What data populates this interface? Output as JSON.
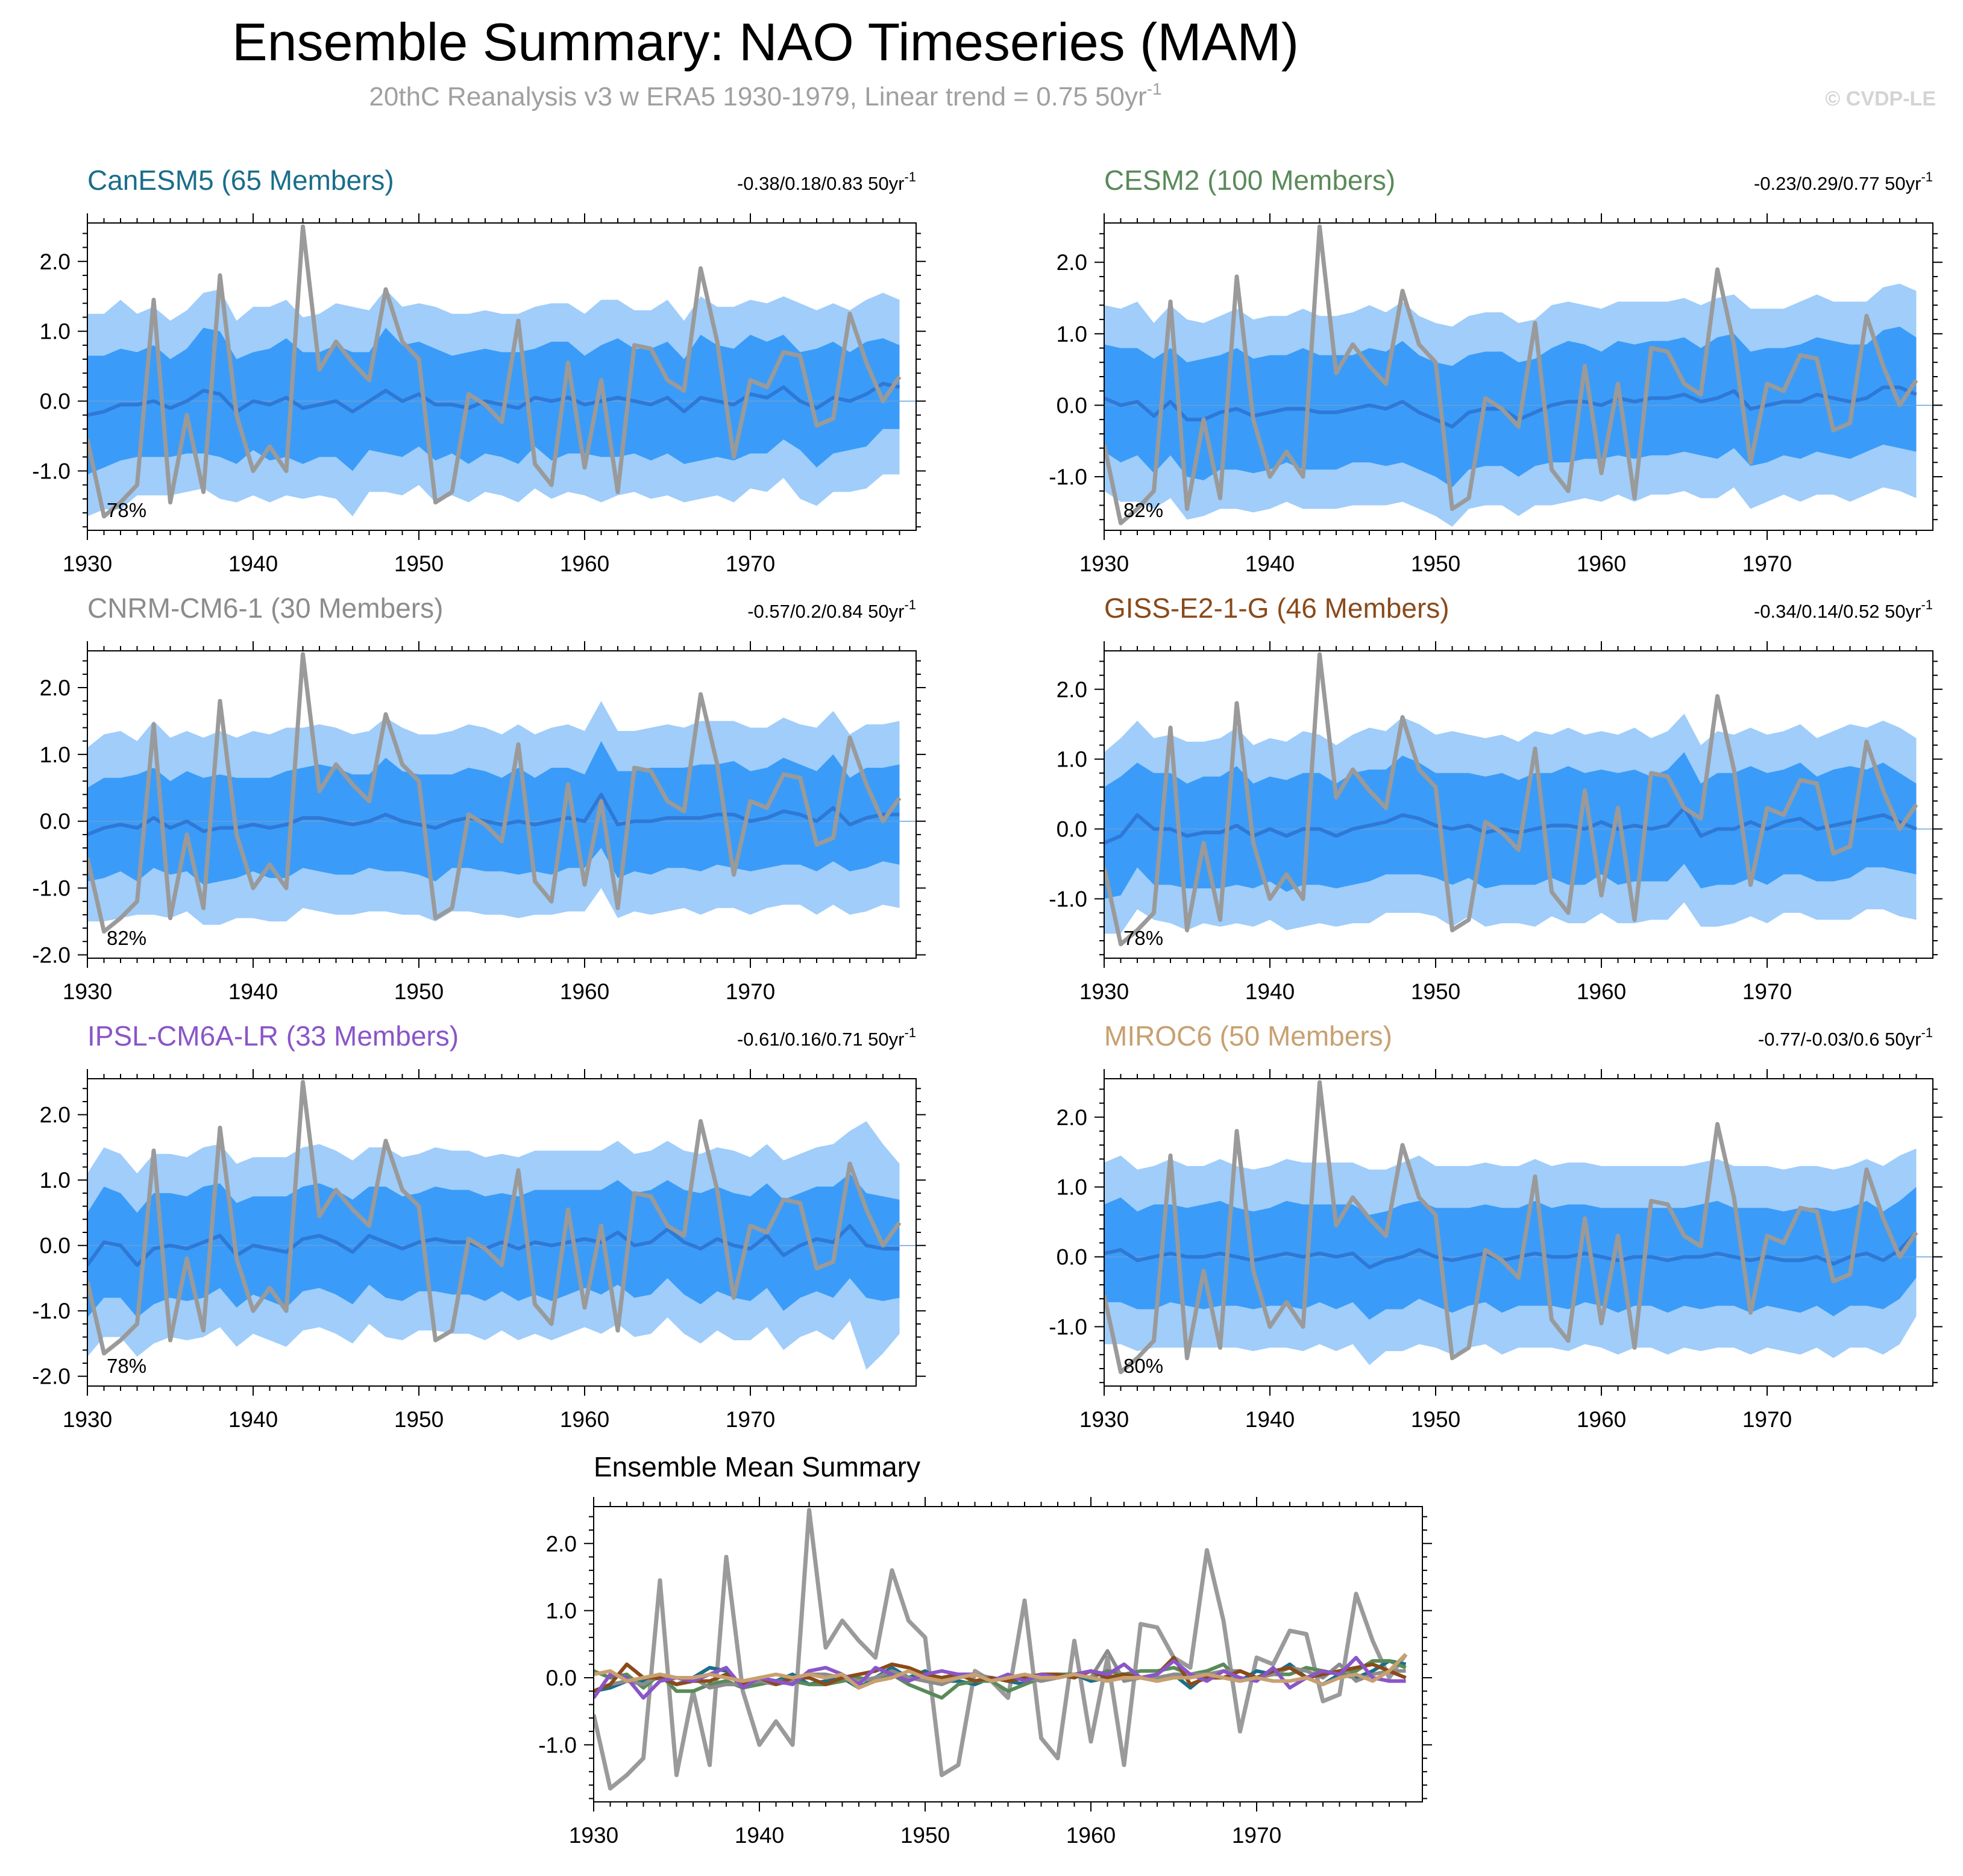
{
  "header": {
    "title": "Ensemble Summary: NAO Timeseries (MAM)",
    "subtitle_main": "20thC Reanalysis v3 w ERA5 1930-1979, Linear trend = 0.75 50yr",
    "subtitle_sup": "-1",
    "credit": "© CVDP-LE"
  },
  "colors": {
    "band_outer": "#a0cdfa",
    "band_inner": "#3a9cf8",
    "ensemble_mean": "#2f78d6",
    "observed": "#9a9a9a"
  },
  "unit": "50yr",
  "unit_sup": "-1",
  "chart_data": {
    "type": "line",
    "x": [
      1930,
      1931,
      1932,
      1933,
      1934,
      1935,
      1936,
      1937,
      1938,
      1939,
      1940,
      1941,
      1942,
      1943,
      1944,
      1945,
      1946,
      1947,
      1948,
      1949,
      1950,
      1951,
      1952,
      1953,
      1954,
      1955,
      1956,
      1957,
      1958,
      1959,
      1960,
      1961,
      1962,
      1963,
      1964,
      1965,
      1966,
      1967,
      1968,
      1969,
      1970,
      1971,
      1972,
      1973,
      1974,
      1975,
      1976,
      1977,
      1978,
      1979
    ],
    "x_ticks": [
      "1930",
      "1940",
      "1950",
      "1960",
      "1970"
    ],
    "observed": {
      "name": "20thC Reanalysis v3 w ERA5",
      "values": [
        -0.55,
        -1.65,
        -1.45,
        -1.2,
        1.45,
        -1.45,
        -0.2,
        -1.3,
        1.8,
        -0.2,
        -1.0,
        -0.65,
        -1.0,
        2.5,
        0.45,
        0.85,
        0.55,
        0.3,
        1.6,
        0.85,
        0.6,
        -1.45,
        -1.3,
        0.1,
        -0.05,
        -0.3,
        1.15,
        -0.9,
        -1.2,
        0.55,
        -0.95,
        0.3,
        -1.3,
        0.8,
        0.75,
        0.3,
        0.15,
        1.9,
        0.85,
        -0.8,
        0.3,
        0.2,
        0.7,
        0.65,
        -0.35,
        -0.25,
        1.25,
        0.55,
        0.0,
        0.35
      ]
    },
    "panels": [
      {
        "title": "CanESM5 (65 Members)",
        "title_color": "#1a6e8a",
        "trend": "-0.38/0.18/0.83",
        "percent": "78%",
        "y_ticks": [
          "2.0",
          "1.0",
          "0.0",
          "-1.0"
        ],
        "ylim": [
          -1.85,
          2.55
        ],
        "mean": [
          -0.2,
          -0.15,
          -0.05,
          -0.05,
          0.0,
          -0.1,
          0.0,
          0.15,
          0.1,
          -0.15,
          0.0,
          -0.05,
          0.05,
          -0.1,
          -0.05,
          0.0,
          -0.15,
          0.0,
          0.15,
          0.0,
          0.1,
          -0.05,
          -0.05,
          -0.1,
          0.0,
          -0.05,
          -0.1,
          0.05,
          0.0,
          0.05,
          -0.05,
          0.0,
          0.05,
          0.0,
          -0.05,
          0.05,
          -0.15,
          0.05,
          0.0,
          -0.05,
          0.1,
          0.05,
          0.2,
          0.0,
          -0.1,
          0.05,
          0.0,
          0.1,
          0.25,
          0.2
        ],
        "inner_half": [
          0.85,
          0.8,
          0.8,
          0.75,
          0.8,
          0.7,
          0.75,
          0.9,
          0.9,
          0.75,
          0.7,
          0.8,
          0.85,
          0.8,
          0.75,
          0.8,
          0.85,
          0.7,
          0.9,
          0.8,
          0.75,
          0.8,
          0.7,
          0.8,
          0.75,
          0.75,
          0.8,
          0.7,
          0.85,
          0.8,
          0.7,
          0.8,
          0.85,
          0.75,
          0.8,
          0.8,
          0.75,
          0.9,
          0.8,
          0.8,
          0.85,
          0.8,
          0.75,
          0.7,
          0.85,
          0.8,
          0.7,
          0.75,
          0.65,
          0.6
        ],
        "outer_half": [
          1.45,
          1.4,
          1.5,
          1.3,
          1.35,
          1.25,
          1.3,
          1.4,
          1.5,
          1.3,
          1.35,
          1.4,
          1.4,
          1.3,
          1.3,
          1.4,
          1.5,
          1.3,
          1.45,
          1.35,
          1.3,
          1.4,
          1.3,
          1.35,
          1.3,
          1.3,
          1.35,
          1.3,
          1.4,
          1.35,
          1.3,
          1.45,
          1.4,
          1.3,
          1.35,
          1.4,
          1.3,
          1.45,
          1.35,
          1.4,
          1.35,
          1.35,
          1.3,
          1.4,
          1.4,
          1.35,
          1.3,
          1.35,
          1.3,
          1.25
        ]
      },
      {
        "title": "CESM2 (100 Members)",
        "title_color": "#5a8a5a",
        "trend": "-0.23/0.29/0.77",
        "percent": "82%",
        "y_ticks": [
          "2.0",
          "1.0",
          "0.0",
          "-1.0"
        ],
        "ylim": [
          -1.75,
          2.55
        ],
        "mean": [
          0.1,
          0.0,
          0.05,
          -0.15,
          0.05,
          -0.2,
          -0.2,
          -0.1,
          -0.05,
          -0.15,
          -0.1,
          -0.05,
          -0.05,
          -0.1,
          -0.1,
          -0.05,
          0.0,
          -0.05,
          0.05,
          -0.1,
          -0.2,
          -0.3,
          -0.1,
          -0.05,
          -0.05,
          -0.2,
          -0.1,
          0.0,
          0.05,
          0.05,
          0.0,
          0.1,
          0.05,
          0.1,
          0.1,
          0.15,
          0.05,
          0.1,
          0.2,
          -0.05,
          0.0,
          0.05,
          0.05,
          0.15,
          0.1,
          0.05,
          0.1,
          0.25,
          0.25,
          0.15
        ],
        "inner_half": [
          0.75,
          0.8,
          0.75,
          0.8,
          0.75,
          0.8,
          0.85,
          0.8,
          0.85,
          0.8,
          0.8,
          0.75,
          0.85,
          0.8,
          0.8,
          0.75,
          0.8,
          0.8,
          0.85,
          0.8,
          0.8,
          0.85,
          0.8,
          0.8,
          0.8,
          0.8,
          0.75,
          0.8,
          0.85,
          0.8,
          0.75,
          0.8,
          0.8,
          0.8,
          0.8,
          0.8,
          0.75,
          0.85,
          0.8,
          0.8,
          0.8,
          0.75,
          0.8,
          0.8,
          0.8,
          0.8,
          0.75,
          0.8,
          0.85,
          0.8
        ],
        "outer_half": [
          1.3,
          1.35,
          1.4,
          1.3,
          1.35,
          1.4,
          1.35,
          1.35,
          1.4,
          1.35,
          1.35,
          1.3,
          1.4,
          1.35,
          1.35,
          1.35,
          1.4,
          1.35,
          1.4,
          1.35,
          1.35,
          1.4,
          1.35,
          1.35,
          1.35,
          1.35,
          1.3,
          1.4,
          1.4,
          1.35,
          1.35,
          1.35,
          1.4,
          1.35,
          1.35,
          1.35,
          1.35,
          1.4,
          1.35,
          1.4,
          1.35,
          1.3,
          1.4,
          1.4,
          1.35,
          1.4,
          1.35,
          1.4,
          1.45,
          1.45
        ]
      },
      {
        "title": "CNRM-CM6-1 (30 Members)",
        "title_color": "#8c8c8c",
        "trend": "-0.57/0.2/0.84",
        "percent": "82%",
        "y_ticks": [
          "2.0",
          "1.0",
          "0.0",
          "-1.0",
          "-2.0"
        ],
        "ylim": [
          -2.05,
          2.55
        ],
        "mean": [
          -0.2,
          -0.1,
          -0.05,
          -0.1,
          0.05,
          -0.1,
          0.0,
          -0.15,
          -0.1,
          -0.1,
          -0.05,
          -0.1,
          -0.05,
          0.05,
          0.05,
          0.0,
          -0.05,
          0.0,
          0.1,
          0.0,
          -0.05,
          -0.1,
          0.0,
          0.05,
          0.0,
          -0.05,
          0.0,
          -0.05,
          0.0,
          0.05,
          0.0,
          0.4,
          -0.05,
          0.0,
          0.0,
          0.05,
          0.05,
          0.05,
          0.1,
          0.1,
          0.0,
          0.05,
          0.15,
          0.1,
          0.0,
          0.2,
          -0.05,
          0.05,
          0.1,
          0.1
        ],
        "inner_half": [
          0.7,
          0.75,
          0.7,
          0.8,
          0.75,
          0.7,
          0.75,
          0.8,
          0.8,
          0.75,
          0.7,
          0.75,
          0.8,
          0.75,
          0.8,
          0.8,
          0.75,
          0.7,
          0.85,
          0.75,
          0.75,
          0.8,
          0.7,
          0.75,
          0.75,
          0.7,
          0.8,
          0.7,
          0.8,
          0.75,
          0.7,
          0.8,
          0.8,
          0.75,
          0.8,
          0.75,
          0.75,
          0.8,
          0.75,
          0.8,
          0.75,
          0.75,
          0.8,
          0.75,
          0.75,
          0.8,
          0.7,
          0.75,
          0.7,
          0.75
        ],
        "outer_half": [
          1.3,
          1.4,
          1.4,
          1.3,
          1.45,
          1.35,
          1.35,
          1.4,
          1.45,
          1.35,
          1.4,
          1.4,
          1.45,
          1.35,
          1.4,
          1.4,
          1.35,
          1.35,
          1.45,
          1.4,
          1.35,
          1.4,
          1.35,
          1.4,
          1.4,
          1.35,
          1.45,
          1.35,
          1.4,
          1.4,
          1.35,
          1.4,
          1.4,
          1.35,
          1.4,
          1.4,
          1.35,
          1.45,
          1.4,
          1.4,
          1.4,
          1.35,
          1.4,
          1.35,
          1.4,
          1.45,
          1.35,
          1.4,
          1.35,
          1.4
        ]
      },
      {
        "title": "GISS-E2-1-G (46 Members)",
        "title_color": "#8a4a1a",
        "trend": "-0.34/0.14/0.52",
        "percent": "78%",
        "y_ticks": [
          "2.0",
          "1.0",
          "0.0",
          "-1.0"
        ],
        "ylim": [
          -1.85,
          2.55
        ],
        "mean": [
          -0.2,
          -0.1,
          0.2,
          0.0,
          0.0,
          -0.1,
          -0.05,
          -0.05,
          0.05,
          -0.1,
          0.0,
          -0.1,
          0.0,
          0.0,
          -0.1,
          0.0,
          0.05,
          0.1,
          0.2,
          0.15,
          0.05,
          0.0,
          0.05,
          -0.05,
          0.0,
          -0.05,
          0.0,
          0.05,
          0.05,
          0.0,
          0.1,
          0.0,
          0.05,
          0.0,
          0.05,
          0.3,
          -0.1,
          0.0,
          0.0,
          0.1,
          0.0,
          0.1,
          0.15,
          0.0,
          0.05,
          0.1,
          0.15,
          0.2,
          0.1,
          0.0
        ],
        "inner_half": [
          0.8,
          0.85,
          0.75,
          0.8,
          0.8,
          0.75,
          0.8,
          0.8,
          0.85,
          0.75,
          0.75,
          0.8,
          0.8,
          0.8,
          0.75,
          0.8,
          0.8,
          0.75,
          0.85,
          0.8,
          0.75,
          0.8,
          0.75,
          0.8,
          0.8,
          0.75,
          0.8,
          0.75,
          0.85,
          0.8,
          0.75,
          0.8,
          0.8,
          0.75,
          0.8,
          0.8,
          0.75,
          0.8,
          0.8,
          0.8,
          0.8,
          0.75,
          0.8,
          0.75,
          0.8,
          0.8,
          0.7,
          0.75,
          0.7,
          0.65
        ],
        "outer_half": [
          1.3,
          1.4,
          1.35,
          1.3,
          1.35,
          1.35,
          1.3,
          1.35,
          1.4,
          1.3,
          1.3,
          1.35,
          1.4,
          1.35,
          1.3,
          1.35,
          1.4,
          1.3,
          1.4,
          1.35,
          1.3,
          1.4,
          1.3,
          1.35,
          1.35,
          1.3,
          1.4,
          1.3,
          1.4,
          1.35,
          1.3,
          1.35,
          1.4,
          1.3,
          1.35,
          1.35,
          1.3,
          1.4,
          1.35,
          1.35,
          1.35,
          1.3,
          1.35,
          1.3,
          1.35,
          1.4,
          1.3,
          1.35,
          1.35,
          1.3
        ]
      },
      {
        "title": "IPSL-CM6A-LR (33 Members)",
        "title_color": "#8a55c8",
        "trend": "-0.61/0.16/0.71",
        "percent": "78%",
        "y_ticks": [
          "2.0",
          "1.0",
          "0.0",
          "-1.0",
          "-2.0"
        ],
        "ylim": [
          -2.15,
          2.55
        ],
        "mean": [
          -0.3,
          0.05,
          0.0,
          -0.3,
          -0.05,
          0.0,
          -0.05,
          0.05,
          0.15,
          -0.15,
          0.0,
          -0.05,
          -0.1,
          0.1,
          0.15,
          0.05,
          -0.1,
          0.15,
          0.05,
          -0.05,
          0.05,
          0.1,
          0.05,
          0.05,
          -0.05,
          0.05,
          -0.05,
          0.05,
          0.0,
          0.05,
          0.1,
          0.05,
          0.2,
          0.0,
          0.05,
          0.25,
          0.05,
          -0.05,
          0.1,
          0.0,
          -0.05,
          0.15,
          -0.15,
          0.0,
          0.1,
          0.05,
          0.3,
          0.0,
          -0.05,
          -0.05
        ],
        "inner_half": [
          0.8,
          0.85,
          0.8,
          0.8,
          0.85,
          0.8,
          0.8,
          0.85,
          0.8,
          0.8,
          0.75,
          0.8,
          0.85,
          0.8,
          0.8,
          0.8,
          0.8,
          0.75,
          0.85,
          0.8,
          0.75,
          0.8,
          0.8,
          0.8,
          0.8,
          0.75,
          0.8,
          0.8,
          0.85,
          0.8,
          0.75,
          0.8,
          0.8,
          0.8,
          0.8,
          0.75,
          0.8,
          0.85,
          0.8,
          0.8,
          0.8,
          0.8,
          0.85,
          0.8,
          0.8,
          0.85,
          0.8,
          0.8,
          0.8,
          0.75
        ],
        "outer_half": [
          1.4,
          1.45,
          1.4,
          1.4,
          1.45,
          1.4,
          1.4,
          1.45,
          1.4,
          1.4,
          1.35,
          1.4,
          1.45,
          1.4,
          1.4,
          1.4,
          1.4,
          1.35,
          1.45,
          1.4,
          1.35,
          1.4,
          1.4,
          1.4,
          1.4,
          1.35,
          1.4,
          1.4,
          1.45,
          1.4,
          1.35,
          1.4,
          1.4,
          1.4,
          1.4,
          1.35,
          1.4,
          1.45,
          1.4,
          1.45,
          1.4,
          1.4,
          1.45,
          1.4,
          1.4,
          1.5,
          1.45,
          1.9,
          1.6,
          1.3
        ]
      },
      {
        "title": "MIROC6 (50 Members)",
        "title_color": "#c8a070",
        "trend": "-0.77/-0.03/0.6",
        "percent": "80%",
        "y_ticks": [
          "2.0",
          "1.0",
          "0.0",
          "-1.0"
        ],
        "ylim": [
          -1.85,
          2.55
        ],
        "mean": [
          0.05,
          0.1,
          -0.05,
          0.0,
          0.05,
          0.0,
          0.0,
          0.05,
          0.0,
          -0.05,
          0.0,
          0.05,
          0.0,
          0.05,
          0.0,
          0.05,
          -0.15,
          -0.05,
          0.0,
          0.1,
          0.0,
          -0.05,
          0.0,
          0.05,
          -0.05,
          0.0,
          0.05,
          0.0,
          0.0,
          0.05,
          0.0,
          -0.05,
          0.0,
          0.0,
          -0.05,
          0.0,
          0.0,
          0.05,
          0.0,
          -0.05,
          0.0,
          -0.05,
          -0.05,
          0.0,
          -0.1,
          0.0,
          0.05,
          -0.05,
          0.1,
          0.35
        ],
        "inner_half": [
          0.7,
          0.75,
          0.7,
          0.75,
          0.7,
          0.7,
          0.75,
          0.75,
          0.7,
          0.7,
          0.7,
          0.75,
          0.75,
          0.7,
          0.75,
          0.7,
          0.75,
          0.7,
          0.75,
          0.7,
          0.7,
          0.75,
          0.7,
          0.7,
          0.75,
          0.7,
          0.75,
          0.7,
          0.75,
          0.7,
          0.7,
          0.75,
          0.7,
          0.7,
          0.75,
          0.7,
          0.75,
          0.75,
          0.7,
          0.75,
          0.7,
          0.7,
          0.75,
          0.7,
          0.75,
          0.7,
          0.75,
          0.7,
          0.7,
          0.65
        ],
        "outer_half": [
          1.3,
          1.35,
          1.3,
          1.3,
          1.35,
          1.3,
          1.3,
          1.35,
          1.3,
          1.3,
          1.3,
          1.35,
          1.35,
          1.3,
          1.35,
          1.3,
          1.4,
          1.3,
          1.35,
          1.35,
          1.3,
          1.35,
          1.3,
          1.3,
          1.35,
          1.3,
          1.35,
          1.3,
          1.35,
          1.3,
          1.3,
          1.35,
          1.3,
          1.3,
          1.35,
          1.3,
          1.35,
          1.35,
          1.3,
          1.35,
          1.3,
          1.3,
          1.35,
          1.3,
          1.35,
          1.3,
          1.35,
          1.35,
          1.35,
          1.2
        ]
      }
    ],
    "summary": {
      "title": "Ensemble Mean Summary",
      "y_ticks": [
        "2.0",
        "1.0",
        "0.0",
        "-1.0"
      ],
      "ylim": [
        -1.85,
        2.55
      ]
    }
  }
}
